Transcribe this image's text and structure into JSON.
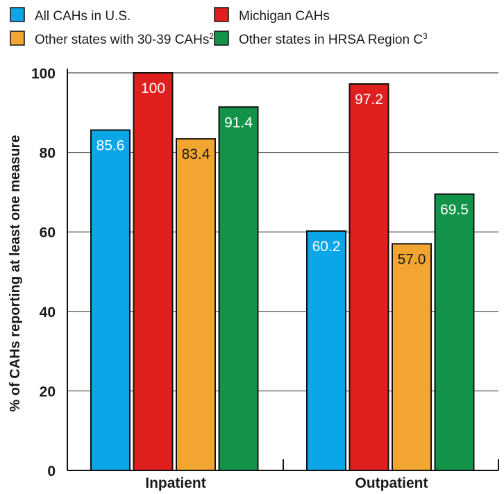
{
  "chart_data": {
    "type": "bar",
    "categories": [
      "Inpatient",
      "Outpatient"
    ],
    "series": [
      {
        "name": "All CAHs in U.S.",
        "values": [
          85.6,
          60.2
        ],
        "labels": [
          "85.6",
          "60.2"
        ],
        "color": "#0aa6e8",
        "label_color": "#ffffff"
      },
      {
        "name": "Michigan CAHs",
        "values": [
          100,
          97.2
        ],
        "labels": [
          "100",
          "97.2"
        ],
        "color": "#e0201e",
        "label_color": "#ffffff"
      },
      {
        "name": "Other states with 30-39 CAHs",
        "sup": "2",
        "values": [
          83.4,
          57.0
        ],
        "labels": [
          "83.4",
          "57.0"
        ],
        "color": "#f2a531",
        "label_color": "#1a1a1a"
      },
      {
        "name": "Other states in HRSA Region C",
        "sup": "3",
        "values": [
          91.4,
          69.5
        ],
        "labels": [
          "91.4",
          "69.5"
        ],
        "color": "#13924a",
        "label_color": "#ffffff"
      }
    ],
    "ylabel": "% of CAHs reporting at least one measure",
    "ylim": [
      0,
      100
    ],
    "yticks": [
      "0",
      "20",
      "40",
      "60",
      "80",
      "100"
    ],
    "grid": true,
    "legend_position": "top"
  }
}
